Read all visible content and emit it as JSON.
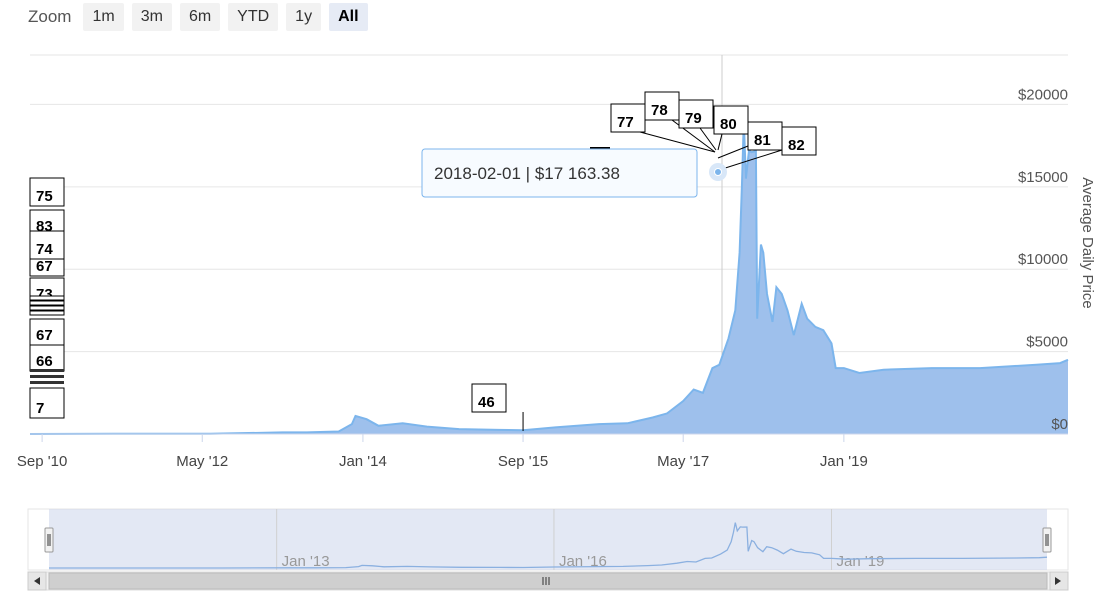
{
  "zoom": {
    "label": "Zoom",
    "buttons": [
      "1m",
      "3m",
      "6m",
      "YTD",
      "1y",
      "All"
    ],
    "active": "All"
  },
  "tooltip": {
    "text": "2018-02-01 | $17 163.38"
  },
  "colors": {
    "area_fill": "#9ec0ec",
    "area_line": "#7cb5ec",
    "tooltip_border": "#7cb5ec",
    "grid": "#e6e6e6",
    "navigator_mask": "#ccd6eb",
    "scrollbar_bg": "#f2f2f2"
  },
  "chart_data": {
    "type": "area",
    "ylabel": "Average Daily Price",
    "ylim": [
      0,
      23000
    ],
    "y_ticks": [
      0,
      5000,
      10000,
      15000,
      20000
    ],
    "y_tick_labels": [
      "$0",
      "$5000",
      "$10000",
      "$15000",
      "$20000"
    ],
    "x_tick_labels": [
      "Sep '10",
      "May '12",
      "Jan '14",
      "Sep '15",
      "May '17",
      "Jan '19"
    ],
    "x_tick_dates": [
      "2010-09-01",
      "2012-05-01",
      "2014-01-01",
      "2015-09-01",
      "2017-05-01",
      "2019-01-01"
    ],
    "grid": true,
    "series": [
      {
        "x": [
          "2010-07-17",
          "2011-06-01",
          "2012-06-01",
          "2013-03-01",
          "2013-06-01",
          "2013-10-01",
          "2013-11-20",
          "2013-12-04",
          "2014-01-15",
          "2014-03-01",
          "2014-06-01",
          "2014-09-01",
          "2015-01-01",
          "2015-06-01",
          "2015-09-01",
          "2016-01-01",
          "2016-06-15",
          "2016-10-01",
          "2017-01-05",
          "2017-03-01",
          "2017-05-01",
          "2017-06-10",
          "2017-07-15",
          "2017-08-20",
          "2017-09-15",
          "2017-10-20",
          "2017-11-15",
          "2017-12-01",
          "2017-12-10",
          "2017-12-17",
          "2017-12-25",
          "2018-01-06",
          "2018-01-15",
          "2018-02-01",
          "2018-02-06",
          "2018-02-20",
          "2018-03-01",
          "2018-03-15",
          "2018-04-05",
          "2018-04-20",
          "2018-05-10",
          "2018-06-01",
          "2018-06-25",
          "2018-07-25",
          "2018-08-15",
          "2018-09-15",
          "2018-10-15",
          "2018-11-15",
          "2018-12-01",
          "2019-01-01",
          "2019-03-01",
          "2019-06-01",
          "2019-12-01",
          "2020-06-01",
          "2021-01-01",
          "2021-04-01",
          "2021-05-01"
        ],
        "y": [
          0,
          10,
          10,
          100,
          100,
          150,
          600,
          1100,
          900,
          500,
          650,
          450,
          300,
          250,
          230,
          400,
          600,
          650,
          1000,
          1250,
          2000,
          2700,
          2500,
          4000,
          4200,
          5800,
          7500,
          11000,
          15000,
          19000,
          15500,
          17200,
          17100,
          17163,
          7000,
          11500,
          11000,
          8500,
          6800,
          8900,
          8500,
          7500,
          6000,
          7900,
          7000,
          6500,
          6300,
          5500,
          4000,
          4000,
          3700,
          3900,
          4000,
          4000,
          4200,
          4300,
          4500
        ]
      }
    ],
    "flags": [
      {
        "label": "75"
      },
      {
        "label": "83"
      },
      {
        "label": "74"
      },
      {
        "label": "67"
      },
      {
        "label": "73"
      },
      {
        "label": "67"
      },
      {
        "label": "66"
      },
      {
        "label": "7"
      },
      {
        "label": "46",
        "date": "2015-09-01"
      },
      {
        "label": "77"
      },
      {
        "label": "78"
      },
      {
        "label": "79"
      },
      {
        "label": "80"
      },
      {
        "label": "81"
      },
      {
        "label": "82"
      }
    ],
    "navigator": {
      "x_tick_labels": [
        "Jan '13",
        "Jan '16",
        "Jan '19"
      ],
      "x_tick_dates": [
        "2013-01-01",
        "2016-01-01",
        "2019-01-01"
      ]
    }
  }
}
